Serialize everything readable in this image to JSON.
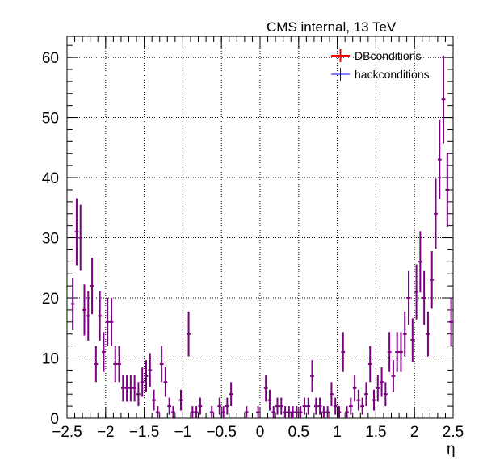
{
  "chart_data": {
    "type": "scatter",
    "title": "CMS internal, 13 TeV",
    "xlabel": "η",
    "ylabel": "",
    "xlim": [
      -2.5,
      2.5
    ],
    "ylim": [
      0,
      63.5
    ],
    "grid": true,
    "legend_position": "top-right",
    "x_ticks": [
      "−2.5",
      "−2",
      "−1.5",
      "−1",
      "−0.5",
      "0",
      "0.5",
      "1",
      "1.5",
      "2",
      "2.5"
    ],
    "y_ticks": [
      "0",
      "10",
      "20",
      "30",
      "40",
      "50",
      "60"
    ],
    "x": [
      -2.475,
      -2.425,
      -2.375,
      -2.325,
      -2.275,
      -2.225,
      -2.175,
      -2.125,
      -2.075,
      -2.025,
      -1.975,
      -1.925,
      -1.875,
      -1.825,
      -1.775,
      -1.725,
      -1.675,
      -1.625,
      -1.575,
      -1.525,
      -1.475,
      -1.425,
      -1.375,
      -1.325,
      -1.275,
      -1.225,
      -1.175,
      -1.125,
      -1.075,
      -1.025,
      -0.975,
      -0.925,
      -0.875,
      -0.825,
      -0.775,
      -0.725,
      -0.675,
      -0.625,
      -0.575,
      -0.525,
      -0.475,
      -0.425,
      -0.375,
      -0.325,
      -0.275,
      -0.225,
      -0.175,
      -0.125,
      -0.075,
      -0.025,
      0.025,
      0.075,
      0.125,
      0.175,
      0.225,
      0.275,
      0.325,
      0.375,
      0.425,
      0.475,
      0.525,
      0.575,
      0.625,
      0.675,
      0.725,
      0.775,
      0.825,
      0.875,
      0.925,
      0.975,
      1.025,
      1.075,
      1.125,
      1.175,
      1.225,
      1.275,
      1.325,
      1.375,
      1.425,
      1.475,
      1.525,
      1.575,
      1.625,
      1.675,
      1.725,
      1.775,
      1.825,
      1.875,
      1.925,
      1.975,
      2.025,
      2.075,
      2.125,
      2.175,
      2.225,
      2.275,
      2.325,
      2.375,
      2.425,
      2.475
    ],
    "series": [
      {
        "name": "DBconditions",
        "color": "#ff0000",
        "values": [
          0,
          19,
          31,
          30,
          18,
          17,
          22,
          9,
          17,
          11,
          16,
          16,
          9,
          9,
          5,
          5,
          5,
          5,
          4,
          6,
          7,
          8,
          3,
          1,
          9,
          6,
          2,
          1,
          0,
          3,
          0,
          14,
          1,
          1,
          2,
          0,
          0,
          1,
          0,
          2,
          1,
          2,
          4,
          0,
          0,
          0,
          1,
          0,
          0,
          1,
          0,
          5,
          3,
          1,
          2,
          2,
          1,
          1,
          1,
          1,
          1,
          2,
          2,
          7,
          2,
          2,
          1,
          1,
          4,
          2,
          1,
          11,
          1,
          2,
          5,
          3,
          2,
          4,
          9,
          3,
          5,
          6,
          4,
          11,
          7,
          11,
          11,
          14,
          20,
          13,
          21,
          26,
          20,
          14,
          23,
          34,
          43,
          53,
          38,
          16
        ]
      },
      {
        "name": "hackconditions",
        "color": "#0000ff",
        "values": [
          0,
          19,
          31,
          30,
          18,
          17,
          22,
          9,
          17,
          11,
          16,
          16,
          9,
          9,
          5,
          5,
          5,
          5,
          4,
          6,
          7,
          8,
          3,
          1,
          9,
          6,
          2,
          1,
          0,
          3,
          0,
          14,
          1,
          1,
          2,
          0,
          0,
          1,
          0,
          2,
          1,
          2,
          4,
          0,
          0,
          0,
          1,
          0,
          0,
          1,
          0,
          5,
          3,
          1,
          2,
          2,
          1,
          1,
          1,
          1,
          1,
          2,
          2,
          7,
          2,
          2,
          1,
          1,
          4,
          2,
          1,
          11,
          1,
          2,
          5,
          3,
          2,
          4,
          9,
          3,
          5,
          6,
          4,
          11,
          7,
          11,
          11,
          14,
          20,
          13,
          21,
          26,
          20,
          14,
          23,
          34,
          43,
          53,
          38,
          16
        ]
      }
    ],
    "overlap_color": "#7a0080"
  }
}
